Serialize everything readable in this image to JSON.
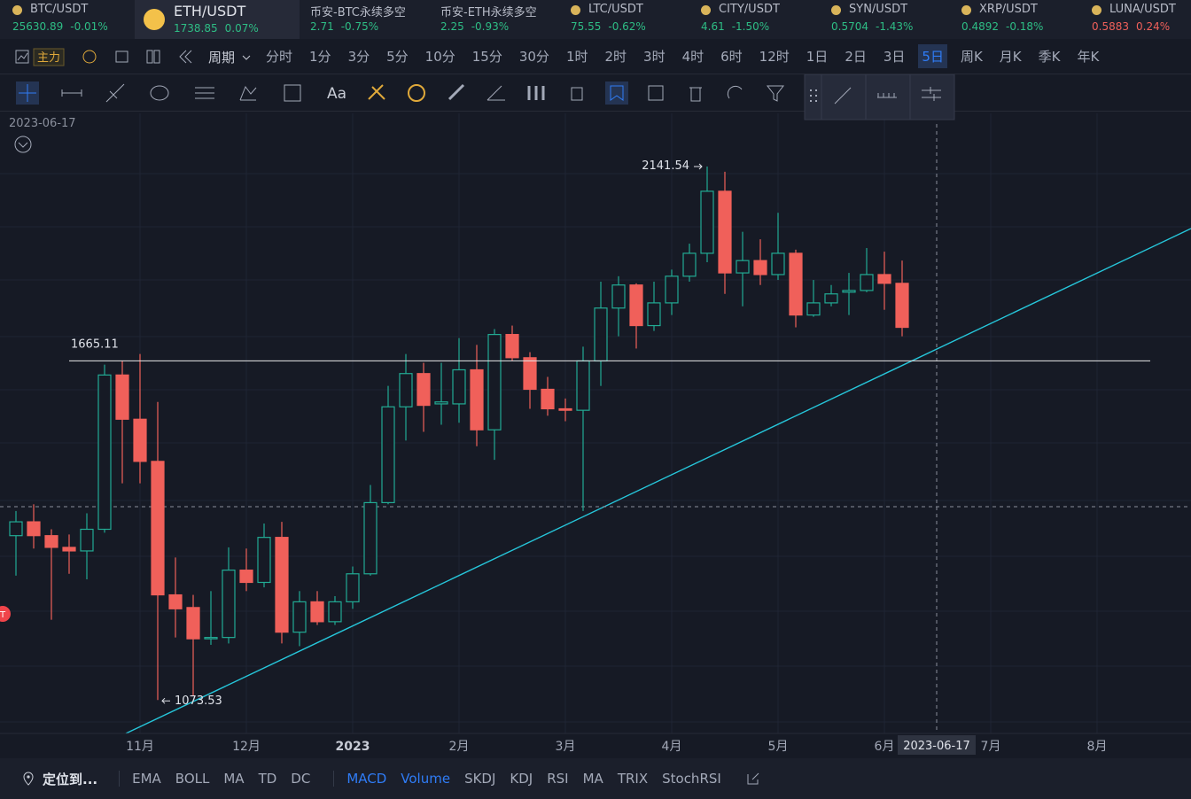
{
  "tickers": [
    {
      "name": "BTC/USDT",
      "price": "25630.89",
      "change": "-0.01%",
      "color": "#2ebd85"
    },
    {
      "name": "ETH/USDT",
      "price": "1738.85",
      "change": "0.07%",
      "color": "#2ebd85",
      "active": true
    },
    {
      "name": "币安-BTC永续多空",
      "price": "2.71",
      "change": "-0.75%",
      "color": "#2ebd85"
    },
    {
      "name": "币安-ETH永续多空",
      "price": "2.25",
      "change": "-0.93%",
      "color": "#2ebd85"
    },
    {
      "name": "LTC/USDT",
      "price": "75.55",
      "change": "-0.62%",
      "color": "#2ebd85"
    },
    {
      "name": "CITY/USDT",
      "price": "4.61",
      "change": "-1.50%",
      "color": "#2ebd85"
    },
    {
      "name": "SYN/USDT",
      "price": "0.5704",
      "change": "-1.43%",
      "color": "#2ebd85"
    },
    {
      "name": "XRP/USDT",
      "price": "0.4892",
      "change": "-0.18%",
      "color": "#2ebd85"
    },
    {
      "name": "LUNA/USDT",
      "price": "0.5883",
      "change": "0.24%",
      "color": "#f0605a"
    }
  ],
  "toolbar": {
    "main": "主力",
    "period": "周期",
    "intervals": [
      {
        "label": "分时"
      },
      {
        "label": "1分"
      },
      {
        "label": "3分"
      },
      {
        "label": "5分"
      },
      {
        "label": "10分"
      },
      {
        "label": "15分"
      },
      {
        "label": "30分"
      },
      {
        "label": "1时"
      },
      {
        "label": "2时"
      },
      {
        "label": "3时"
      },
      {
        "label": "4时"
      },
      {
        "label": "6时"
      },
      {
        "label": "12时"
      },
      {
        "label": "1日"
      },
      {
        "label": "2日"
      },
      {
        "label": "3日"
      },
      {
        "label": "5日",
        "active": true
      },
      {
        "label": "周K"
      },
      {
        "label": "月K"
      },
      {
        "label": "季K"
      },
      {
        "label": "年K"
      }
    ],
    "text_tool": "Aa"
  },
  "chart_data": {
    "type": "candlestick",
    "log_scale": true,
    "ylim": [
      1028,
      2294
    ],
    "grid": true,
    "up_color": "#22ab94",
    "down_color": "#f0605a",
    "crosshair_date": "2023-06-17",
    "hline": 1665.11,
    "badge": "T",
    "x_axis_labels": [
      "11月",
      "12月",
      "2023",
      "2月",
      "3月",
      "4月",
      "5月",
      "6月",
      "7月",
      "8月"
    ],
    "open": [
      1328,
      1352,
      1328,
      1308,
      1302,
      1339,
      1635,
      1544,
      1462,
      1230,
      1210,
      1162,
      1164,
      1270,
      1250,
      1325,
      1172,
      1219,
      1188,
      1219,
      1264,
      1386,
      1569,
      1638,
      1575,
      1575,
      1646,
      1523,
      1723,
      1672,
      1605,
      1565,
      1562,
      1665,
      1783,
      1837,
      1743,
      1795,
      1858,
      1914,
      2074,
      1866,
      1896,
      1862,
      1914,
      1767,
      1795,
      1820,
      1824,
      1862,
      1841
    ],
    "high": [
      1371,
      1383,
      1339,
      1330,
      1367,
      1657,
      1665,
      1680,
      1579,
      1291,
      1230,
      1236,
      1308,
      1306,
      1349,
      1352,
      1236,
      1236,
      1228,
      1276,
      1418,
      1612,
      1680,
      1661,
      1661,
      1715,
      1700,
      1735,
      1743,
      1684,
      1631,
      1586,
      1696,
      1845,
      1858,
      1841,
      1845,
      1874,
      1938,
      2141.54,
      2127,
      1968,
      1949,
      2017,
      1923,
      1849,
      1837,
      1866,
      1927,
      1918,
      1896
    ],
    "low": [
      1261,
      1306,
      1191,
      1264,
      1255,
      1333,
      1421,
      1421,
      1073.53,
      1164,
      1080,
      1153,
      1155,
      1236,
      1242,
      1155,
      1151,
      1183,
      1183,
      1208,
      1261,
      1383,
      1502,
      1519,
      1533,
      1537,
      1491,
      1465,
      1665,
      1565,
      1551,
      1540,
      1371,
      1612,
      1719,
      1692,
      1731,
      1767,
      1845,
      1892,
      1816,
      1787,
      1837,
      1849,
      1739,
      1763,
      1787,
      1767,
      1820,
      1779,
      1719
    ],
    "close": [
      1352,
      1328,
      1308,
      1302,
      1339,
      1635,
      1544,
      1462,
      1230,
      1208,
      1162,
      1164,
      1270,
      1250,
      1325,
      1172,
      1219,
      1188,
      1219,
      1264,
      1386,
      1569,
      1638,
      1572,
      1579,
      1646,
      1523,
      1723,
      1672,
      1605,
      1565,
      1562,
      1665,
      1783,
      1837,
      1743,
      1795,
      1858,
      1914,
      2074,
      1866,
      1896,
      1862,
      1914,
      1767,
      1795,
      1816,
      1824,
      1862,
      1841,
      1739
    ]
  },
  "bottom_bar": {
    "locate": "定位到...",
    "main_indicators": [
      {
        "label": "EMA"
      },
      {
        "label": "BOLL"
      },
      {
        "label": "MA"
      },
      {
        "label": "TD"
      },
      {
        "label": "DC"
      }
    ],
    "sub_indicators": [
      {
        "label": "MACD",
        "active": true
      },
      {
        "label": "Volume",
        "active": true
      },
      {
        "label": "SKDJ"
      },
      {
        "label": "KDJ"
      },
      {
        "label": "RSI"
      },
      {
        "label": "MA"
      },
      {
        "label": "TRIX"
      },
      {
        "label": "StochRSI"
      }
    ]
  }
}
